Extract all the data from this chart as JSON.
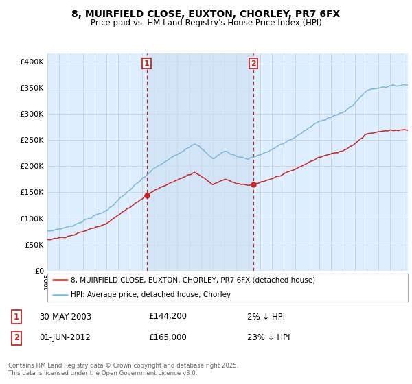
{
  "title_line1": "8, MUIRFIELD CLOSE, EUXTON, CHORLEY, PR7 6FX",
  "title_line2": "Price paid vs. HM Land Registry's House Price Index (HPI)",
  "yticks": [
    0,
    50000,
    100000,
    150000,
    200000,
    250000,
    300000,
    350000,
    400000
  ],
  "ylim": [
    0,
    415000
  ],
  "xlim_start": 1995,
  "xlim_end": 2025.5,
  "sale1_date": 2003.41,
  "sale1_price": 144200,
  "sale1_label": "1",
  "sale2_date": 2012.42,
  "sale2_price": 165000,
  "sale2_label": "2",
  "legend_line1": "8, MUIRFIELD CLOSE, EUXTON, CHORLEY, PR7 6FX (detached house)",
  "legend_line2": "HPI: Average price, detached house, Chorley",
  "footer": "Contains HM Land Registry data © Crown copyright and database right 2025.\nThis data is licensed under the Open Government Licence v3.0.",
  "hpi_color": "#7ab8d9",
  "price_color": "#cc2222",
  "bg_color": "#ddeeff",
  "shade_color": "#cce0f0",
  "vline_color": "#cc2222",
  "grid_color": "#cccccc",
  "sale1_row": [
    "30-MAY-2003",
    "£144,200",
    "2% ↓ HPI"
  ],
  "sale2_row": [
    "01-JUN-2012",
    "£165,000",
    "23% ↓ HPI"
  ]
}
